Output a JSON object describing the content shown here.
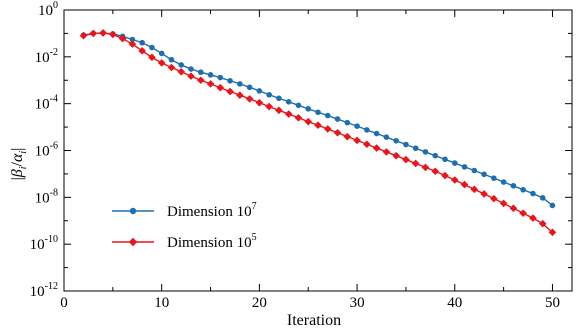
{
  "chart_data": {
    "type": "line",
    "xlabel": "Iteration",
    "ylabel": "|β_i/α_i|",
    "yscale": "log",
    "xlim": [
      0,
      52
    ],
    "ylim_exp": [
      -12,
      0
    ],
    "x_ticks": [
      "0",
      "10",
      "20",
      "30",
      "40",
      "50"
    ],
    "y_tick_exponents": [
      "0",
      "-2",
      "-4",
      "-6",
      "-8",
      "-10",
      "-12"
    ],
    "legend_position": "lower-left",
    "grid": false,
    "x": [
      2,
      3,
      4,
      5,
      6,
      7,
      8,
      9,
      10,
      11,
      12,
      13,
      14,
      15,
      16,
      17,
      18,
      19,
      20,
      21,
      22,
      23,
      24,
      25,
      26,
      27,
      28,
      29,
      30,
      31,
      32,
      33,
      34,
      35,
      36,
      37,
      38,
      39,
      40,
      41,
      42,
      43,
      44,
      45,
      46,
      47,
      48,
      49,
      50
    ],
    "series": [
      {
        "name": "Dimension 10^7",
        "name_base": "Dimension 10",
        "name_exp": "7",
        "color": "#1f6fae",
        "marker": "circle",
        "values": [
          0.085,
          0.1,
          0.105,
          0.095,
          0.075,
          0.055,
          0.04,
          0.025,
          0.014,
          0.0075,
          0.0045,
          0.003,
          0.0022,
          0.0017,
          0.0013,
          0.00095,
          0.0007,
          0.0005,
          0.00035,
          0.00024,
          0.00017,
          0.00012,
          8.5e-05,
          6e-05,
          4.3e-05,
          3.1e-05,
          2.2e-05,
          1.55e-05,
          1.1e-05,
          7.6e-06,
          5.3e-06,
          3.7e-06,
          2.6e-06,
          1.8e-06,
          1.25e-06,
          8.7e-07,
          6e-07,
          4.2e-07,
          2.9e-07,
          2e-07,
          1.4e-07,
          9.6e-08,
          6.6e-08,
          4.5e-08,
          3.1e-08,
          2.1e-08,
          1.45e-08,
          9.5e-09,
          4.5e-09
        ]
      },
      {
        "name": "Dimension 10^5",
        "name_base": "Dimension 10",
        "name_exp": "5",
        "color": "#e8151b",
        "marker": "diamond",
        "values": [
          0.08,
          0.1,
          0.105,
          0.09,
          0.06,
          0.035,
          0.018,
          0.0095,
          0.0055,
          0.0035,
          0.0023,
          0.0015,
          0.001,
          0.0007,
          0.00048,
          0.00033,
          0.00023,
          0.00016,
          0.00011,
          7.5e-05,
          5.2e-05,
          3.6e-05,
          2.5e-05,
          1.7e-05,
          1.2e-05,
          8.3e-06,
          5.7e-06,
          3.9e-06,
          2.7e-06,
          1.85e-06,
          1.27e-06,
          8.7e-07,
          6e-07,
          4.1e-07,
          2.8e-07,
          1.9e-07,
          1.3e-07,
          8.5e-08,
          5.5e-08,
          3.5e-08,
          2.2e-08,
          1.4e-08,
          8.8e-09,
          5.5e-09,
          3.4e-09,
          2.1e-09,
          1.3e-09,
          7.5e-10,
          3.2e-10
        ]
      }
    ]
  }
}
